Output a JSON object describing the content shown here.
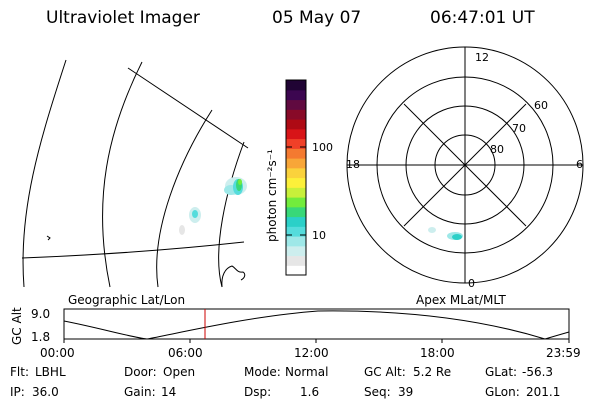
{
  "header": {
    "instrument": "Ultraviolet Imager",
    "date": "05 May 07",
    "time": "06:47:01 UT"
  },
  "colorbar": {
    "unit_label": "photon cm⁻²s⁻¹",
    "tick_labels": [
      "100",
      "10"
    ],
    "colors": [
      "#ffffff",
      "#e6e6e6",
      "#cdeeee",
      "#9ee8e8",
      "#55dcdc",
      "#2bd0c8",
      "#38d878",
      "#72ec3c",
      "#c8f03a",
      "#fcf03a",
      "#fad23c",
      "#f8a638",
      "#f47a30",
      "#f04028",
      "#d81418",
      "#ae0a14",
      "#880a28",
      "#600a40",
      "#3c0650",
      "#200434"
    ]
  },
  "geo_map": {
    "label": "Geographic Lat/Lon"
  },
  "polar_map": {
    "label": "Apex MLat/MLT",
    "mlt_labels": {
      "top": "12",
      "left": "18",
      "right": "6",
      "bottom": "0"
    },
    "lat_labels": [
      "60",
      "70",
      "80"
    ]
  },
  "altitude_plot": {
    "ylabel": "GC Alt",
    "yticks": [
      "9.0",
      "1.8"
    ],
    "xticks": [
      "00:00",
      "06:00",
      "12:00",
      "18:00",
      "23:59"
    ],
    "current_time_marker_color": "#cc0000"
  },
  "status": {
    "filter": {
      "label": "Flt:",
      "value": "LBHL"
    },
    "door": {
      "label": "Door:",
      "value": "Open"
    },
    "mode": {
      "label": "Mode:",
      "value": "Normal"
    },
    "gcalt": {
      "label": "GC Alt:",
      "value": "5.2 Re"
    },
    "glat": {
      "label": "GLat:",
      "value": "-56.3"
    },
    "ip": {
      "label": "IP:",
      "value": "36.0"
    },
    "gain": {
      "label": "Gain:",
      "value": "14"
    },
    "dsp": {
      "label": "Dsp:",
      "value": "1.6"
    },
    "seq": {
      "label": "Seq:",
      "value": "39"
    },
    "glon": {
      "label": "GLon:",
      "value": "201.1"
    }
  }
}
